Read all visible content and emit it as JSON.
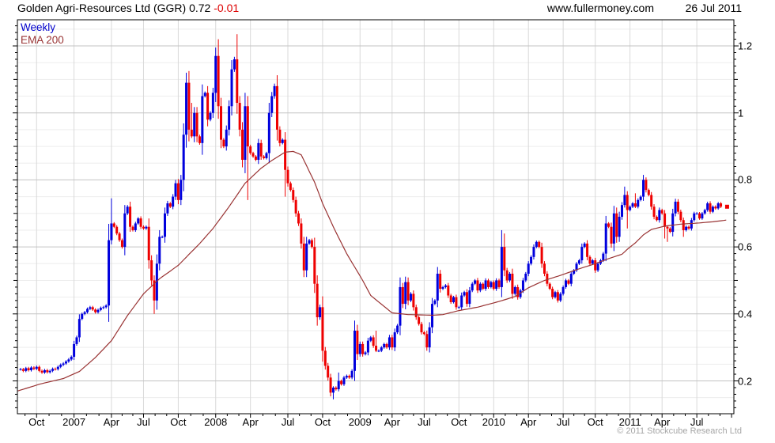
{
  "header": {
    "title_main": "Golden Agri-Resources Ltd (GGR) 0.72",
    "title_change": "-0.01",
    "site": "www.fullermoney.com",
    "date": "26 Jul 2011"
  },
  "legend": {
    "timeframe": "Weekly",
    "overlay": "EMA 200"
  },
  "footer": {
    "copyright": "© 2011 Stockcube Research Ltd"
  },
  "colors": {
    "up": "#0000dd",
    "down": "#ee0000",
    "ema": "#993333",
    "grid_vertical": "#d9d9d9",
    "grid_major": "#c3c3c3",
    "grid_minor": "#ededed",
    "axis": "#000000",
    "marker": "#ee0000"
  },
  "chart_data": {
    "type": "candlestick",
    "title": "Golden Agri-Resources Ltd (GGR)",
    "timeframe": "Weekly",
    "last_price": 0.72,
    "change": -0.01,
    "y_axis": {
      "ticks": [
        1.2,
        1.0,
        0.8,
        0.6,
        0.4,
        0.2
      ],
      "labels": [
        "1.2",
        "1",
        "0.8",
        "0.6",
        "0.4",
        "0.2"
      ],
      "range": [
        0.102,
        1.278
      ],
      "side": "right"
    },
    "x_axis": {
      "labels": [
        "Oct",
        "2007",
        "Apr",
        "Jul",
        "Oct",
        "2008",
        "Apr",
        "Jul",
        "Oct",
        "2009",
        "Apr",
        "Jul",
        "Oct",
        "2010",
        "Apr",
        "Jul",
        "Oct",
        "2011",
        "Apr",
        "Jul"
      ],
      "quarter_weeks": [
        6,
        20,
        34,
        46,
        59,
        73,
        86,
        100,
        113,
        127,
        139,
        151,
        164,
        177,
        190,
        203,
        215,
        228,
        240,
        253
      ],
      "minor_ticks": "monthly"
    },
    "series": [
      {
        "name": "GGR weekly candles",
        "type": "candle",
        "weekly_closes": [
          0.235,
          0.23,
          0.238,
          0.232,
          0.24,
          0.236,
          0.242,
          0.23,
          0.225,
          0.232,
          0.226,
          0.23,
          0.236,
          0.235,
          0.242,
          0.248,
          0.252,
          0.258,
          0.264,
          0.272,
          0.31,
          0.33,
          0.385,
          0.4,
          0.405,
          0.415,
          0.42,
          0.413,
          0.405,
          0.412,
          0.418,
          0.42,
          0.425,
          0.62,
          0.67,
          0.66,
          0.64,
          0.62,
          0.6,
          0.7,
          0.72,
          0.66,
          0.65,
          0.67,
          0.685,
          0.66,
          0.655,
          0.66,
          0.56,
          0.5,
          0.44,
          0.55,
          0.63,
          0.63,
          0.7,
          0.73,
          0.72,
          0.75,
          0.79,
          0.74,
          0.8,
          0.935,
          1.09,
          0.95,
          0.93,
          1.0,
          0.93,
          0.91,
          1.05,
          1.06,
          0.98,
          1.0,
          1.06,
          1.17,
          1.02,
          0.92,
          0.9,
          0.95,
          1.02,
          1.13,
          1.16,
          1.03,
          0.95,
          0.86,
          1.02,
          0.9,
          0.88,
          0.87,
          0.86,
          0.91,
          0.87,
          0.865,
          0.88,
          1.0,
          1.05,
          1.08,
          0.95,
          0.91,
          0.92,
          0.83,
          0.79,
          0.77,
          0.74,
          0.7,
          0.67,
          0.61,
          0.53,
          0.61,
          0.62,
          0.6,
          0.49,
          0.39,
          0.42,
          0.29,
          0.245,
          0.21,
          0.165,
          0.18,
          0.175,
          0.2,
          0.19,
          0.21,
          0.215,
          0.21,
          0.23,
          0.35,
          0.28,
          0.31,
          0.28,
          0.285,
          0.32,
          0.33,
          0.305,
          0.29,
          0.29,
          0.3,
          0.31,
          0.3,
          0.33,
          0.3,
          0.345,
          0.365,
          0.48,
          0.43,
          0.495,
          0.44,
          0.46,
          0.42,
          0.39,
          0.37,
          0.345,
          0.34,
          0.3,
          0.36,
          0.43,
          0.44,
          0.52,
          0.475,
          0.48,
          0.485,
          0.455,
          0.435,
          0.45,
          0.42,
          0.42,
          0.455,
          0.465,
          0.43,
          0.47,
          0.49,
          0.5,
          0.47,
          0.49,
          0.475,
          0.5,
          0.48,
          0.495,
          0.475,
          0.5,
          0.48,
          0.6,
          0.53,
          0.5,
          0.52,
          0.46,
          0.48,
          0.45,
          0.47,
          0.5,
          0.52,
          0.55,
          0.57,
          0.6,
          0.615,
          0.6,
          0.55,
          0.52,
          0.49,
          0.475,
          0.45,
          0.465,
          0.44,
          0.46,
          0.48,
          0.5,
          0.49,
          0.52,
          0.53,
          0.55,
          0.56,
          0.6,
          0.61,
          0.57,
          0.55,
          0.56,
          0.53,
          0.55,
          0.56,
          0.58,
          0.67,
          0.66,
          0.61,
          0.7,
          0.63,
          0.69,
          0.725,
          0.755,
          0.71,
          0.72,
          0.73,
          0.72,
          0.74,
          0.75,
          0.8,
          0.77,
          0.755,
          0.72,
          0.69,
          0.68,
          0.71,
          0.7,
          0.66,
          0.655,
          0.645,
          0.7,
          0.735,
          0.705,
          0.68,
          0.65,
          0.66,
          0.655,
          0.68,
          0.7,
          0.7,
          0.685,
          0.7,
          0.71,
          0.73,
          0.705,
          0.72,
          0.715,
          0.73,
          0.72
        ],
        "wick_extremes": [
          [
            34,
            0.745,
            null
          ],
          [
            50,
            null,
            0.4
          ],
          [
            62,
            1.12,
            null
          ],
          [
            64,
            1.03,
            null
          ],
          [
            73,
            1.195,
            null
          ],
          [
            74,
            1.22,
            null
          ],
          [
            81,
            1.235,
            null
          ],
          [
            85,
            null,
            0.74
          ],
          [
            99,
            null,
            0.75
          ],
          [
            117,
            null,
            0.145
          ],
          [
            119,
            0.225,
            null
          ],
          [
            133,
            0.35,
            null
          ],
          [
            180,
            0.65,
            null
          ],
          [
            181,
            0.64,
            null
          ],
          [
            226,
            0.78,
            null
          ],
          [
            227,
            null,
            0.655
          ],
          [
            230,
            0.76,
            null
          ],
          [
            233,
            0.815,
            null
          ],
          [
            241,
            null,
            0.625
          ],
          [
            242,
            null,
            0.615
          ],
          [
            248,
            null,
            0.63
          ]
        ]
      },
      {
        "name": "EMA 200",
        "type": "line",
        "anchors": [
          [
            -1,
            0.17
          ],
          [
            7,
            0.19
          ],
          [
            16,
            0.207
          ],
          [
            22,
            0.228
          ],
          [
            28,
            0.27
          ],
          [
            34,
            0.32
          ],
          [
            40,
            0.395
          ],
          [
            46,
            0.46
          ],
          [
            52,
            0.505
          ],
          [
            59,
            0.545
          ],
          [
            67,
            0.61
          ],
          [
            72,
            0.655
          ],
          [
            78,
            0.72
          ],
          [
            84,
            0.79
          ],
          [
            90,
            0.835
          ],
          [
            94,
            0.858
          ],
          [
            99,
            0.883
          ],
          [
            102,
            0.885
          ],
          [
            105,
            0.875
          ],
          [
            110,
            0.793
          ],
          [
            113,
            0.73
          ],
          [
            117,
            0.66
          ],
          [
            122,
            0.58
          ],
          [
            128,
            0.5
          ],
          [
            131,
            0.455
          ],
          [
            139,
            0.403
          ],
          [
            145,
            0.398
          ],
          [
            154,
            0.396
          ],
          [
            158,
            0.398
          ],
          [
            164,
            0.41
          ],
          [
            171,
            0.42
          ],
          [
            179,
            0.437
          ],
          [
            185,
            0.452
          ],
          [
            190,
            0.478
          ],
          [
            196,
            0.5
          ],
          [
            202,
            0.515
          ],
          [
            208,
            0.532
          ],
          [
            215,
            0.55
          ],
          [
            220,
            0.565
          ],
          [
            225,
            0.578
          ],
          [
            227,
            0.593
          ],
          [
            230,
            0.612
          ],
          [
            233,
            0.636
          ],
          [
            236,
            0.652
          ],
          [
            241,
            0.662
          ],
          [
            247,
            0.668
          ],
          [
            253,
            0.671
          ],
          [
            259,
            0.675
          ],
          [
            264,
            0.68
          ]
        ]
      }
    ],
    "current_price_marker": {
      "price": 0.72
    }
  }
}
